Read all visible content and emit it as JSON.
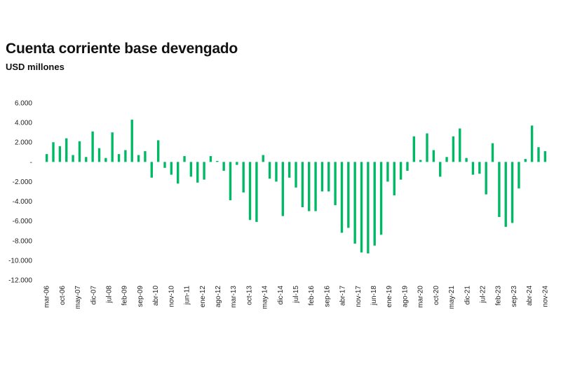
{
  "chart_data": {
    "type": "bar",
    "title": "Cuenta corriente base devengado",
    "subtitle": "USD millones",
    "xlabel": "",
    "ylabel": "",
    "ylim": [
      -12000,
      6000
    ],
    "yticks": [
      6000,
      4000,
      2000,
      0,
      -2000,
      -4000,
      -6000,
      -8000,
      -10000,
      -12000
    ],
    "ytick_labels": [
      "6.000",
      "4.000",
      "2.000",
      "-",
      "-2.000",
      "-4.000",
      "-6.000",
      "-8.000",
      "-10.000",
      "-12.000"
    ],
    "grid": false,
    "legend": "none",
    "bar_color": "#00b964",
    "frequency": "quarterly",
    "start": "mar-06",
    "end": "nov-24",
    "xtick_labels": [
      "mar-06",
      "oct-06",
      "may-07",
      "dic-07",
      "jul-08",
      "feb-09",
      "sep-09",
      "abr-10",
      "nov-10",
      "jun-11",
      "ene-12",
      "ago-12",
      "mar-13",
      "oct-13",
      "may-14",
      "dic-14",
      "jul-15",
      "feb-16",
      "sep-16",
      "abr-17",
      "nov-17",
      "jun-18",
      "ene-19",
      "ago-19",
      "mar-20",
      "oct-20",
      "may-21",
      "dic-21",
      "jul-22",
      "feb-23",
      "sep-23",
      "abr-24",
      "nov-24"
    ],
    "series": [
      {
        "values": [
          800,
          2000,
          1600,
          2400,
          700,
          2100,
          500,
          3100,
          1400,
          400,
          3000,
          800,
          1200,
          4300,
          700,
          1100,
          -1600,
          2200,
          -600,
          -1300,
          -2200,
          600,
          -1500,
          -2100,
          -1800,
          600,
          100,
          -900,
          -3900,
          -300,
          -3100,
          -5900,
          -6100,
          700,
          -1700,
          -2000,
          -5500,
          -1600,
          -2600,
          -4600,
          -5000,
          -5000,
          -3000,
          -3000,
          -4400,
          -7200,
          -6700,
          -8300,
          -9200,
          -9300,
          -8500,
          -7400,
          -2000,
          -3400,
          -1800,
          -900,
          2600,
          200,
          2900,
          1200,
          -1500,
          500,
          2600,
          3400,
          400,
          -1300,
          -1200,
          -3300,
          1900,
          -5600,
          -6600,
          -6200,
          -2700,
          300,
          3700,
          1500,
          1100
        ]
      }
    ]
  }
}
